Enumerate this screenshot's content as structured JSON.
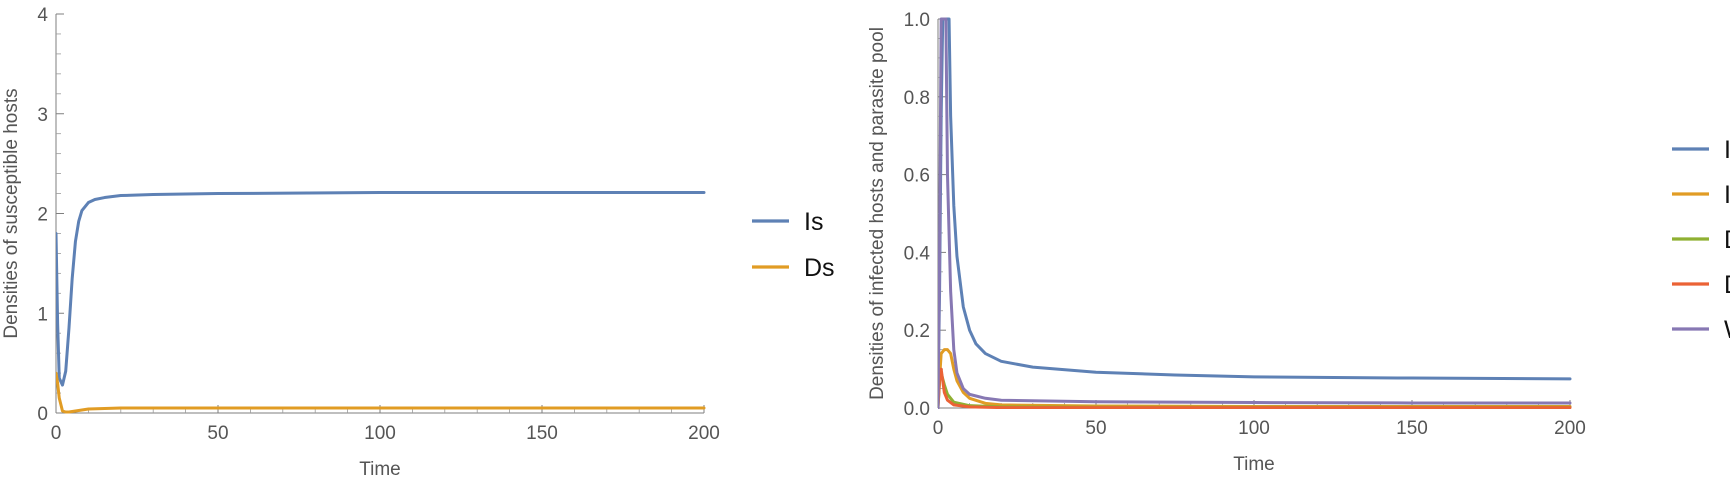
{
  "chart_data": [
    {
      "type": "line",
      "xlabel": "Time",
      "ylabel": "Densities of susceptible hosts",
      "xlim": [
        0,
        200
      ],
      "ylim": [
        0,
        4
      ],
      "xticks": [
        0,
        50,
        100,
        150,
        200
      ],
      "yticks": [
        0,
        1,
        2,
        3,
        4
      ],
      "legend_position": "right",
      "series": [
        {
          "name": "Is",
          "color": "#5E81B5",
          "points": [
            [
              0,
              1.8
            ],
            [
              0.5,
              0.9
            ],
            [
              1,
              0.35
            ],
            [
              2,
              0.28
            ],
            [
              3,
              0.42
            ],
            [
              4,
              0.85
            ],
            [
              5,
              1.35
            ],
            [
              6,
              1.72
            ],
            [
              7,
              1.92
            ],
            [
              8,
              2.03
            ],
            [
              10,
              2.11
            ],
            [
              12,
              2.14
            ],
            [
              15,
              2.16
            ],
            [
              20,
              2.18
            ],
            [
              30,
              2.19
            ],
            [
              50,
              2.2
            ],
            [
              100,
              2.21
            ],
            [
              150,
              2.21
            ],
            [
              200,
              2.21
            ]
          ]
        },
        {
          "name": "Ds",
          "color": "#E19C24",
          "points": [
            [
              0,
              0.4
            ],
            [
              0.5,
              0.3
            ],
            [
              1,
              0.15
            ],
            [
              2,
              0.02
            ],
            [
              3,
              0.01
            ],
            [
              4,
              0.01
            ],
            [
              6,
              0.02
            ],
            [
              10,
              0.04
            ],
            [
              15,
              0.045
            ],
            [
              20,
              0.05
            ],
            [
              50,
              0.05
            ],
            [
              100,
              0.05
            ],
            [
              150,
              0.05
            ],
            [
              200,
              0.05
            ]
          ]
        }
      ]
    },
    {
      "type": "line",
      "xlabel": "Time",
      "ylabel": "Densities of infected hosts and parasite pool",
      "xlim": [
        0,
        200
      ],
      "ylim": [
        0,
        1.0
      ],
      "xticks": [
        0,
        50,
        100,
        150,
        200
      ],
      "yticks": [
        0.0,
        0.2,
        0.4,
        0.6,
        0.8,
        1.0
      ],
      "ytick_labels": [
        "0.0",
        "0.2",
        "0.4",
        "0.6",
        "0.8",
        "1.0"
      ],
      "legend_position": "right",
      "series": [
        {
          "name": "Iw",
          "color": "#5E81B5",
          "points": [
            [
              0,
              0.02
            ],
            [
              0.5,
              0.3
            ],
            [
              1,
              0.75
            ],
            [
              1.5,
              1.0
            ],
            [
              3,
              1.0
            ],
            [
              3.5,
              1.0
            ],
            [
              4,
              0.75
            ],
            [
              5,
              0.52
            ],
            [
              6,
              0.39
            ],
            [
              8,
              0.26
            ],
            [
              10,
              0.2
            ],
            [
              12,
              0.165
            ],
            [
              15,
              0.14
            ],
            [
              20,
              0.12
            ],
            [
              30,
              0.105
            ],
            [
              50,
              0.092
            ],
            [
              75,
              0.085
            ],
            [
              100,
              0.08
            ],
            [
              150,
              0.077
            ],
            [
              200,
              0.075
            ]
          ]
        },
        {
          "name": "Iww",
          "color": "#E19C24",
          "points": [
            [
              0,
              0.01
            ],
            [
              1,
              0.14
            ],
            [
              2,
              0.15
            ],
            [
              3,
              0.15
            ],
            [
              4,
              0.14
            ],
            [
              5,
              0.1
            ],
            [
              6,
              0.07
            ],
            [
              8,
              0.04
            ],
            [
              10,
              0.025
            ],
            [
              15,
              0.012
            ],
            [
              20,
              0.008
            ],
            [
              50,
              0.005
            ],
            [
              100,
              0.004
            ],
            [
              150,
              0.004
            ],
            [
              200,
              0.004
            ]
          ]
        },
        {
          "name": "Dw",
          "color": "#8FB032",
          "points": [
            [
              0,
              0.0
            ],
            [
              0.5,
              0.07
            ],
            [
              1,
              0.09
            ],
            [
              2,
              0.06
            ],
            [
              3,
              0.035
            ],
            [
              5,
              0.015
            ],
            [
              10,
              0.006
            ],
            [
              20,
              0.003
            ],
            [
              50,
              0.002
            ],
            [
              100,
              0.002
            ],
            [
              150,
              0.002
            ],
            [
              200,
              0.002
            ]
          ]
        },
        {
          "name": "Dww",
          "color": "#EB6235",
          "points": [
            [
              0,
              0.0
            ],
            [
              0.5,
              0.08
            ],
            [
              1,
              0.1
            ],
            [
              1.5,
              0.07
            ],
            [
              2,
              0.04
            ],
            [
              3,
              0.02
            ],
            [
              5,
              0.008
            ],
            [
              10,
              0.003
            ],
            [
              20,
              0.001
            ],
            [
              50,
              0.001
            ],
            [
              100,
              0.001
            ],
            [
              150,
              0.001
            ],
            [
              200,
              0.001
            ]
          ]
        },
        {
          "name": "W",
          "color": "#8778B3",
          "points": [
            [
              0,
              0.0
            ],
            [
              0.5,
              0.4
            ],
            [
              1,
              1.0
            ],
            [
              2,
              1.0
            ],
            [
              2.5,
              1.0
            ],
            [
              3,
              0.6
            ],
            [
              4,
              0.3
            ],
            [
              5,
              0.15
            ],
            [
              6,
              0.09
            ],
            [
              8,
              0.05
            ],
            [
              10,
              0.035
            ],
            [
              15,
              0.025
            ],
            [
              20,
              0.02
            ],
            [
              50,
              0.016
            ],
            [
              100,
              0.014
            ],
            [
              150,
              0.013
            ],
            [
              200,
              0.013
            ]
          ]
        }
      ]
    }
  ]
}
